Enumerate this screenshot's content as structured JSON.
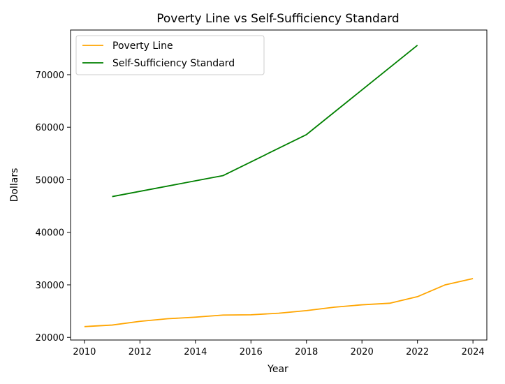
{
  "chart_data": {
    "type": "line",
    "title": "Poverty Line vs Self-Sufficiency Standard",
    "xlabel": "Year",
    "ylabel": "Dollars",
    "xlim": [
      2009.5,
      2024.5
    ],
    "ylim": [
      19500,
      78500
    ],
    "x_ticks": [
      2010,
      2012,
      2014,
      2016,
      2018,
      2020,
      2022,
      2024
    ],
    "y_ticks": [
      20000,
      30000,
      40000,
      50000,
      60000,
      70000
    ],
    "grid": false,
    "legend_position": "upper-left",
    "series": [
      {
        "name": "Poverty Line",
        "color": "#ffa500",
        "x": [
          2010,
          2011,
          2012,
          2013,
          2014,
          2015,
          2016,
          2017,
          2018,
          2019,
          2020,
          2021,
          2022,
          2023,
          2024
        ],
        "y": [
          22050,
          22350,
          23050,
          23550,
          23850,
          24250,
          24300,
          24600,
          25100,
          25750,
          26200,
          26500,
          27750,
          30000,
          31200
        ]
      },
      {
        "name": "Self-Sufficiency Standard",
        "color": "#008000",
        "x": [
          2011,
          2015,
          2018,
          2022
        ],
        "y": [
          46800,
          50800,
          58600,
          75600
        ]
      }
    ]
  }
}
